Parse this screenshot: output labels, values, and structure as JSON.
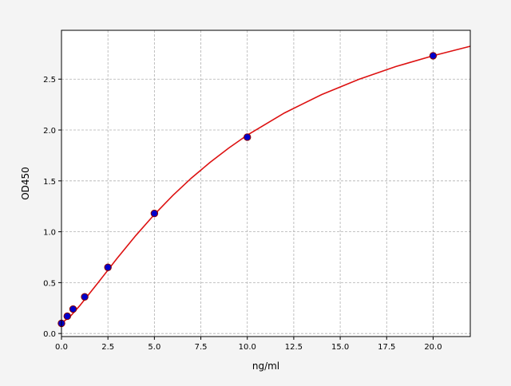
{
  "chart_data": {
    "type": "scatter",
    "title": "",
    "xlabel": "ng/ml",
    "ylabel": "OD450",
    "xlim": [
      0,
      22
    ],
    "ylim": [
      -0.03,
      2.98
    ],
    "grid": true,
    "x_ticks": [
      "0.0",
      "2.5",
      "5.0",
      "7.5",
      "10.0",
      "12.5",
      "15.0",
      "17.5",
      "20.0"
    ],
    "y_ticks": [
      "0.0",
      "0.5",
      "1.0",
      "1.5",
      "2.0",
      "2.5"
    ],
    "points": {
      "x": [
        0,
        0.3125,
        0.625,
        1.25,
        2.5,
        5,
        10,
        20
      ],
      "y": [
        0.1,
        0.17,
        0.24,
        0.36,
        0.65,
        1.18,
        1.93,
        2.73
      ],
      "color": "#0000cc",
      "edge_color": "#8b0000"
    },
    "fit_curve": {
      "x": [
        0,
        0.5,
        1,
        2,
        3,
        4,
        5,
        6,
        7,
        8,
        9,
        10,
        12,
        14,
        16,
        18,
        20,
        22
      ],
      "y": [
        0.1,
        0.174,
        0.277,
        0.506,
        0.74,
        0.963,
        1.17,
        1.358,
        1.529,
        1.683,
        1.823,
        1.95,
        2.168,
        2.348,
        2.498,
        2.624,
        2.73,
        2.823
      ],
      "color": "#dd1111"
    }
  }
}
